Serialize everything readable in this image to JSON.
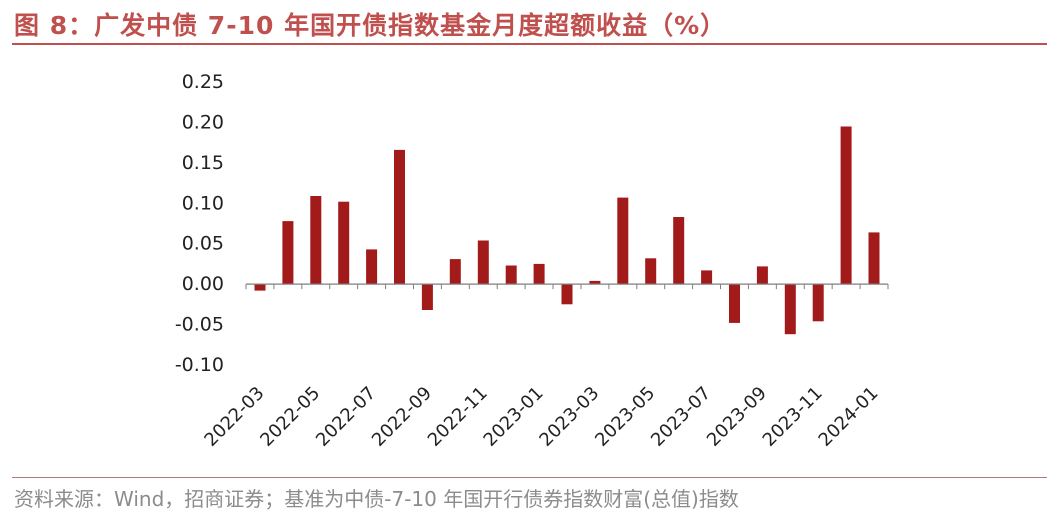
{
  "title": "图 8：广发中债 7-10 年国开债指数基金月度超额收益（%）",
  "source": "资料来源：Wind，招商证券；基准为中债-7-10 年国开行债券指数财富(总值)指数",
  "colors": {
    "bar": "#a31a1a",
    "accent": "#c0504d"
  },
  "chart_data": {
    "type": "bar",
    "title": "",
    "xlabel": "",
    "ylabel": "",
    "ylim": [
      -0.1,
      0.25
    ],
    "yticks": [
      "0.25",
      "0.20",
      "0.15",
      "0.10",
      "0.05",
      "0.00",
      "-0.05",
      "-0.10"
    ],
    "ytick_values": [
      0.25,
      0.2,
      0.15,
      0.1,
      0.05,
      0.0,
      -0.05,
      -0.1
    ],
    "categories": [
      "2022-03",
      "2022-04",
      "2022-05",
      "2022-06",
      "2022-07",
      "2022-08",
      "2022-09",
      "2022-10",
      "2022-11",
      "2022-12",
      "2023-01",
      "2023-02",
      "2023-03",
      "2023-04",
      "2023-05",
      "2023-06",
      "2023-07",
      "2023-08",
      "2023-09",
      "2023-10",
      "2023-11",
      "2023-12",
      "2024-01"
    ],
    "xtick_labels": [
      "2022-03",
      "2022-05",
      "2022-07",
      "2022-09",
      "2022-11",
      "2023-01",
      "2023-03",
      "2023-05",
      "2023-07",
      "2023-09",
      "2023-11",
      "2024-01"
    ],
    "values": [
      -0.008,
      0.078,
      0.109,
      0.102,
      0.043,
      0.166,
      -0.032,
      0.031,
      0.054,
      0.023,
      0.025,
      -0.025,
      0.004,
      0.107,
      0.032,
      0.083,
      0.017,
      -0.048,
      0.022,
      -0.062,
      -0.046,
      0.195,
      0.064
    ],
    "grid": false,
    "legend": "none"
  }
}
